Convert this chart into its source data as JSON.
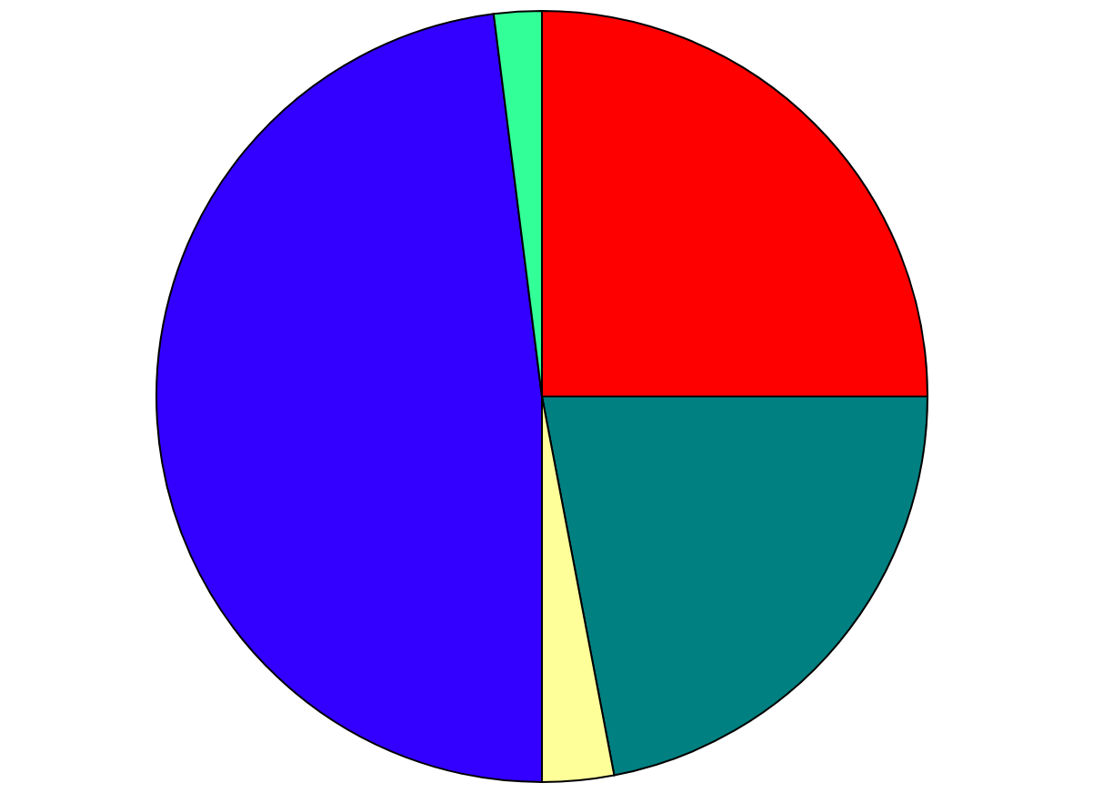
{
  "chart_data": {
    "type": "pie",
    "categories": [
      null,
      null,
      null,
      null,
      null
    ],
    "values": [
      25,
      22,
      3,
      48,
      2
    ],
    "colors": [
      "#ff0000",
      "#008080",
      "#ffff99",
      "#3300ff",
      "#33ff99"
    ]
  }
}
